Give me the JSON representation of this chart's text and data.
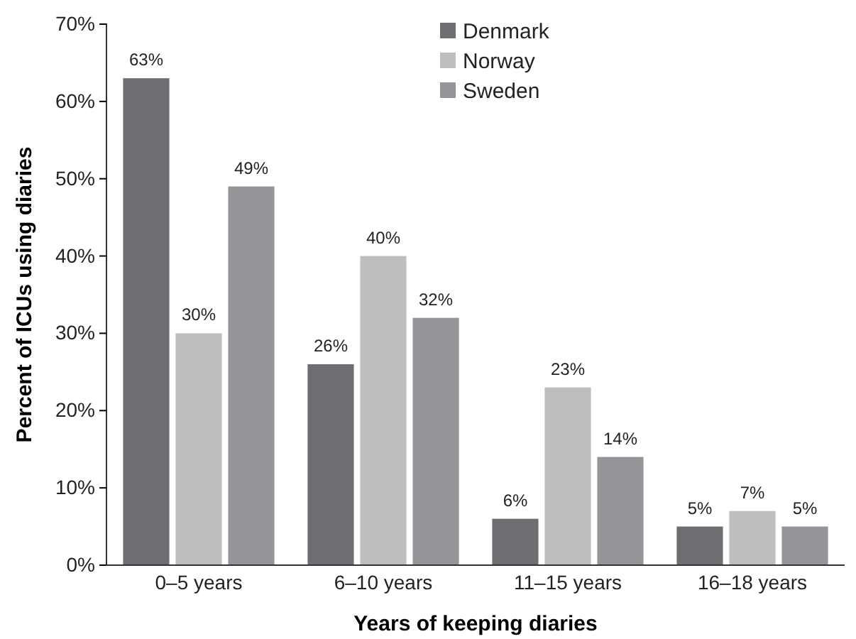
{
  "chart_data": {
    "type": "bar",
    "xlabel": "Years of keeping diaries",
    "ylabel": "Percent of ICUs using diaries",
    "categories": [
      "0–5 years",
      "6–10 years",
      "11–15 years",
      "16–18 years"
    ],
    "series": [
      {
        "name": "Denmark",
        "color": "#6d6e71",
        "values": [
          63,
          26,
          6,
          5
        ],
        "value_labels": [
          "63%",
          "26%",
          "6%",
          "5%"
        ]
      },
      {
        "name": "Norway",
        "color": "#bcbec0",
        "values": [
          30,
          40,
          23,
          7
        ],
        "value_labels": [
          "30%",
          "40%",
          "23%",
          "7%"
        ]
      },
      {
        "name": "Sweden",
        "color": "#939598",
        "values": [
          49,
          32,
          14,
          5
        ],
        "value_labels": [
          "49%",
          "32%",
          "14%",
          "5%"
        ]
      }
    ],
    "ylim": [
      0,
      70
    ],
    "yticks": [
      {
        "value": 0,
        "label": "0%"
      },
      {
        "value": 10,
        "label": "10%"
      },
      {
        "value": 20,
        "label": "20%"
      },
      {
        "value": 30,
        "label": "30%"
      },
      {
        "value": 40,
        "label": "40%"
      },
      {
        "value": 50,
        "label": "50%"
      },
      {
        "value": 60,
        "label": "60%"
      },
      {
        "value": 70,
        "label": "70%"
      }
    ],
    "grid": false,
    "legend": "top"
  }
}
